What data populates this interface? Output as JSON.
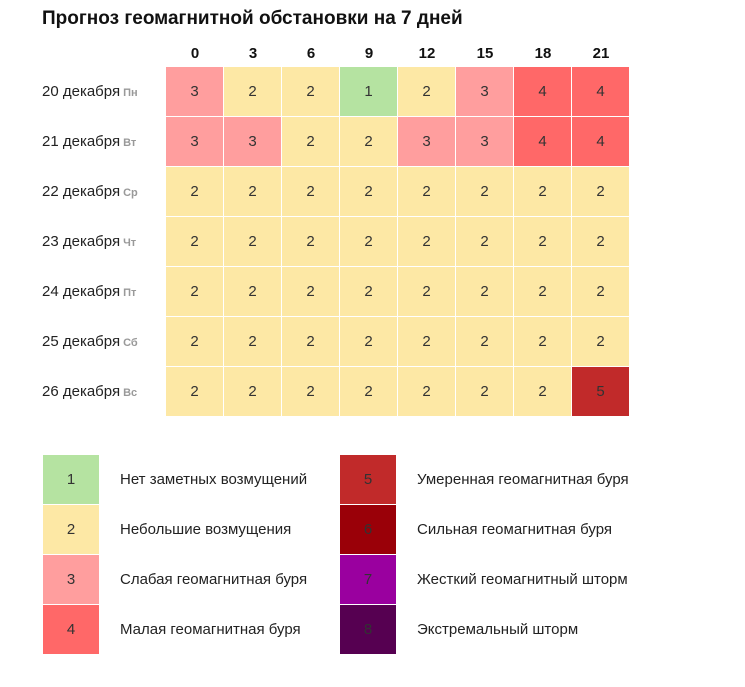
{
  "title": "Прогноз геомагнитной обстановки на 7 дней",
  "colors": {
    "1": "#b5e3a1",
    "2": "#fde8a5",
    "3": "#ff9e9e",
    "4": "#ff6868",
    "5": "#c12a2a",
    "6": "#9a0008",
    "7": "#9a009f",
    "8": "#560051"
  },
  "legend": [
    {
      "level": "1",
      "label": "Нет заметных возмущений"
    },
    {
      "level": "2",
      "label": "Небольшие возмущения"
    },
    {
      "level": "3",
      "label": "Слабая геомагнитная буря"
    },
    {
      "level": "4",
      "label": "Малая геомагнитная буря"
    },
    {
      "level": "5",
      "label": "Умеренная геомагнитная буря"
    },
    {
      "level": "6",
      "label": "Сильная геомагнитная буря"
    },
    {
      "level": "7",
      "label": "Жесткий геомагнитный шторм"
    },
    {
      "level": "8",
      "label": "Экстремальный шторм"
    }
  ],
  "chart_data": {
    "type": "heatmap",
    "title": "Прогноз геомагнитной обстановки на 7 дней",
    "x": [
      "0",
      "3",
      "6",
      "9",
      "12",
      "15",
      "18",
      "21"
    ],
    "rows": [
      {
        "day": "20 декабря",
        "dow": "Пн",
        "values": [
          3,
          2,
          2,
          1,
          2,
          3,
          4,
          4
        ]
      },
      {
        "day": "21 декабря",
        "dow": "Вт",
        "values": [
          3,
          3,
          2,
          2,
          3,
          3,
          4,
          4
        ]
      },
      {
        "day": "22 декабря",
        "dow": "Ср",
        "values": [
          2,
          2,
          2,
          2,
          2,
          2,
          2,
          2
        ]
      },
      {
        "day": "23 декабря",
        "dow": "Чт",
        "values": [
          2,
          2,
          2,
          2,
          2,
          2,
          2,
          2
        ]
      },
      {
        "day": "24 декабря",
        "dow": "Пт",
        "values": [
          2,
          2,
          2,
          2,
          2,
          2,
          2,
          2
        ]
      },
      {
        "day": "25 декабря",
        "dow": "Сб",
        "values": [
          2,
          2,
          2,
          2,
          2,
          2,
          2,
          2
        ]
      },
      {
        "day": "26 декабря",
        "dow": "Вс",
        "values": [
          2,
          2,
          2,
          2,
          2,
          2,
          2,
          5
        ]
      }
    ]
  }
}
